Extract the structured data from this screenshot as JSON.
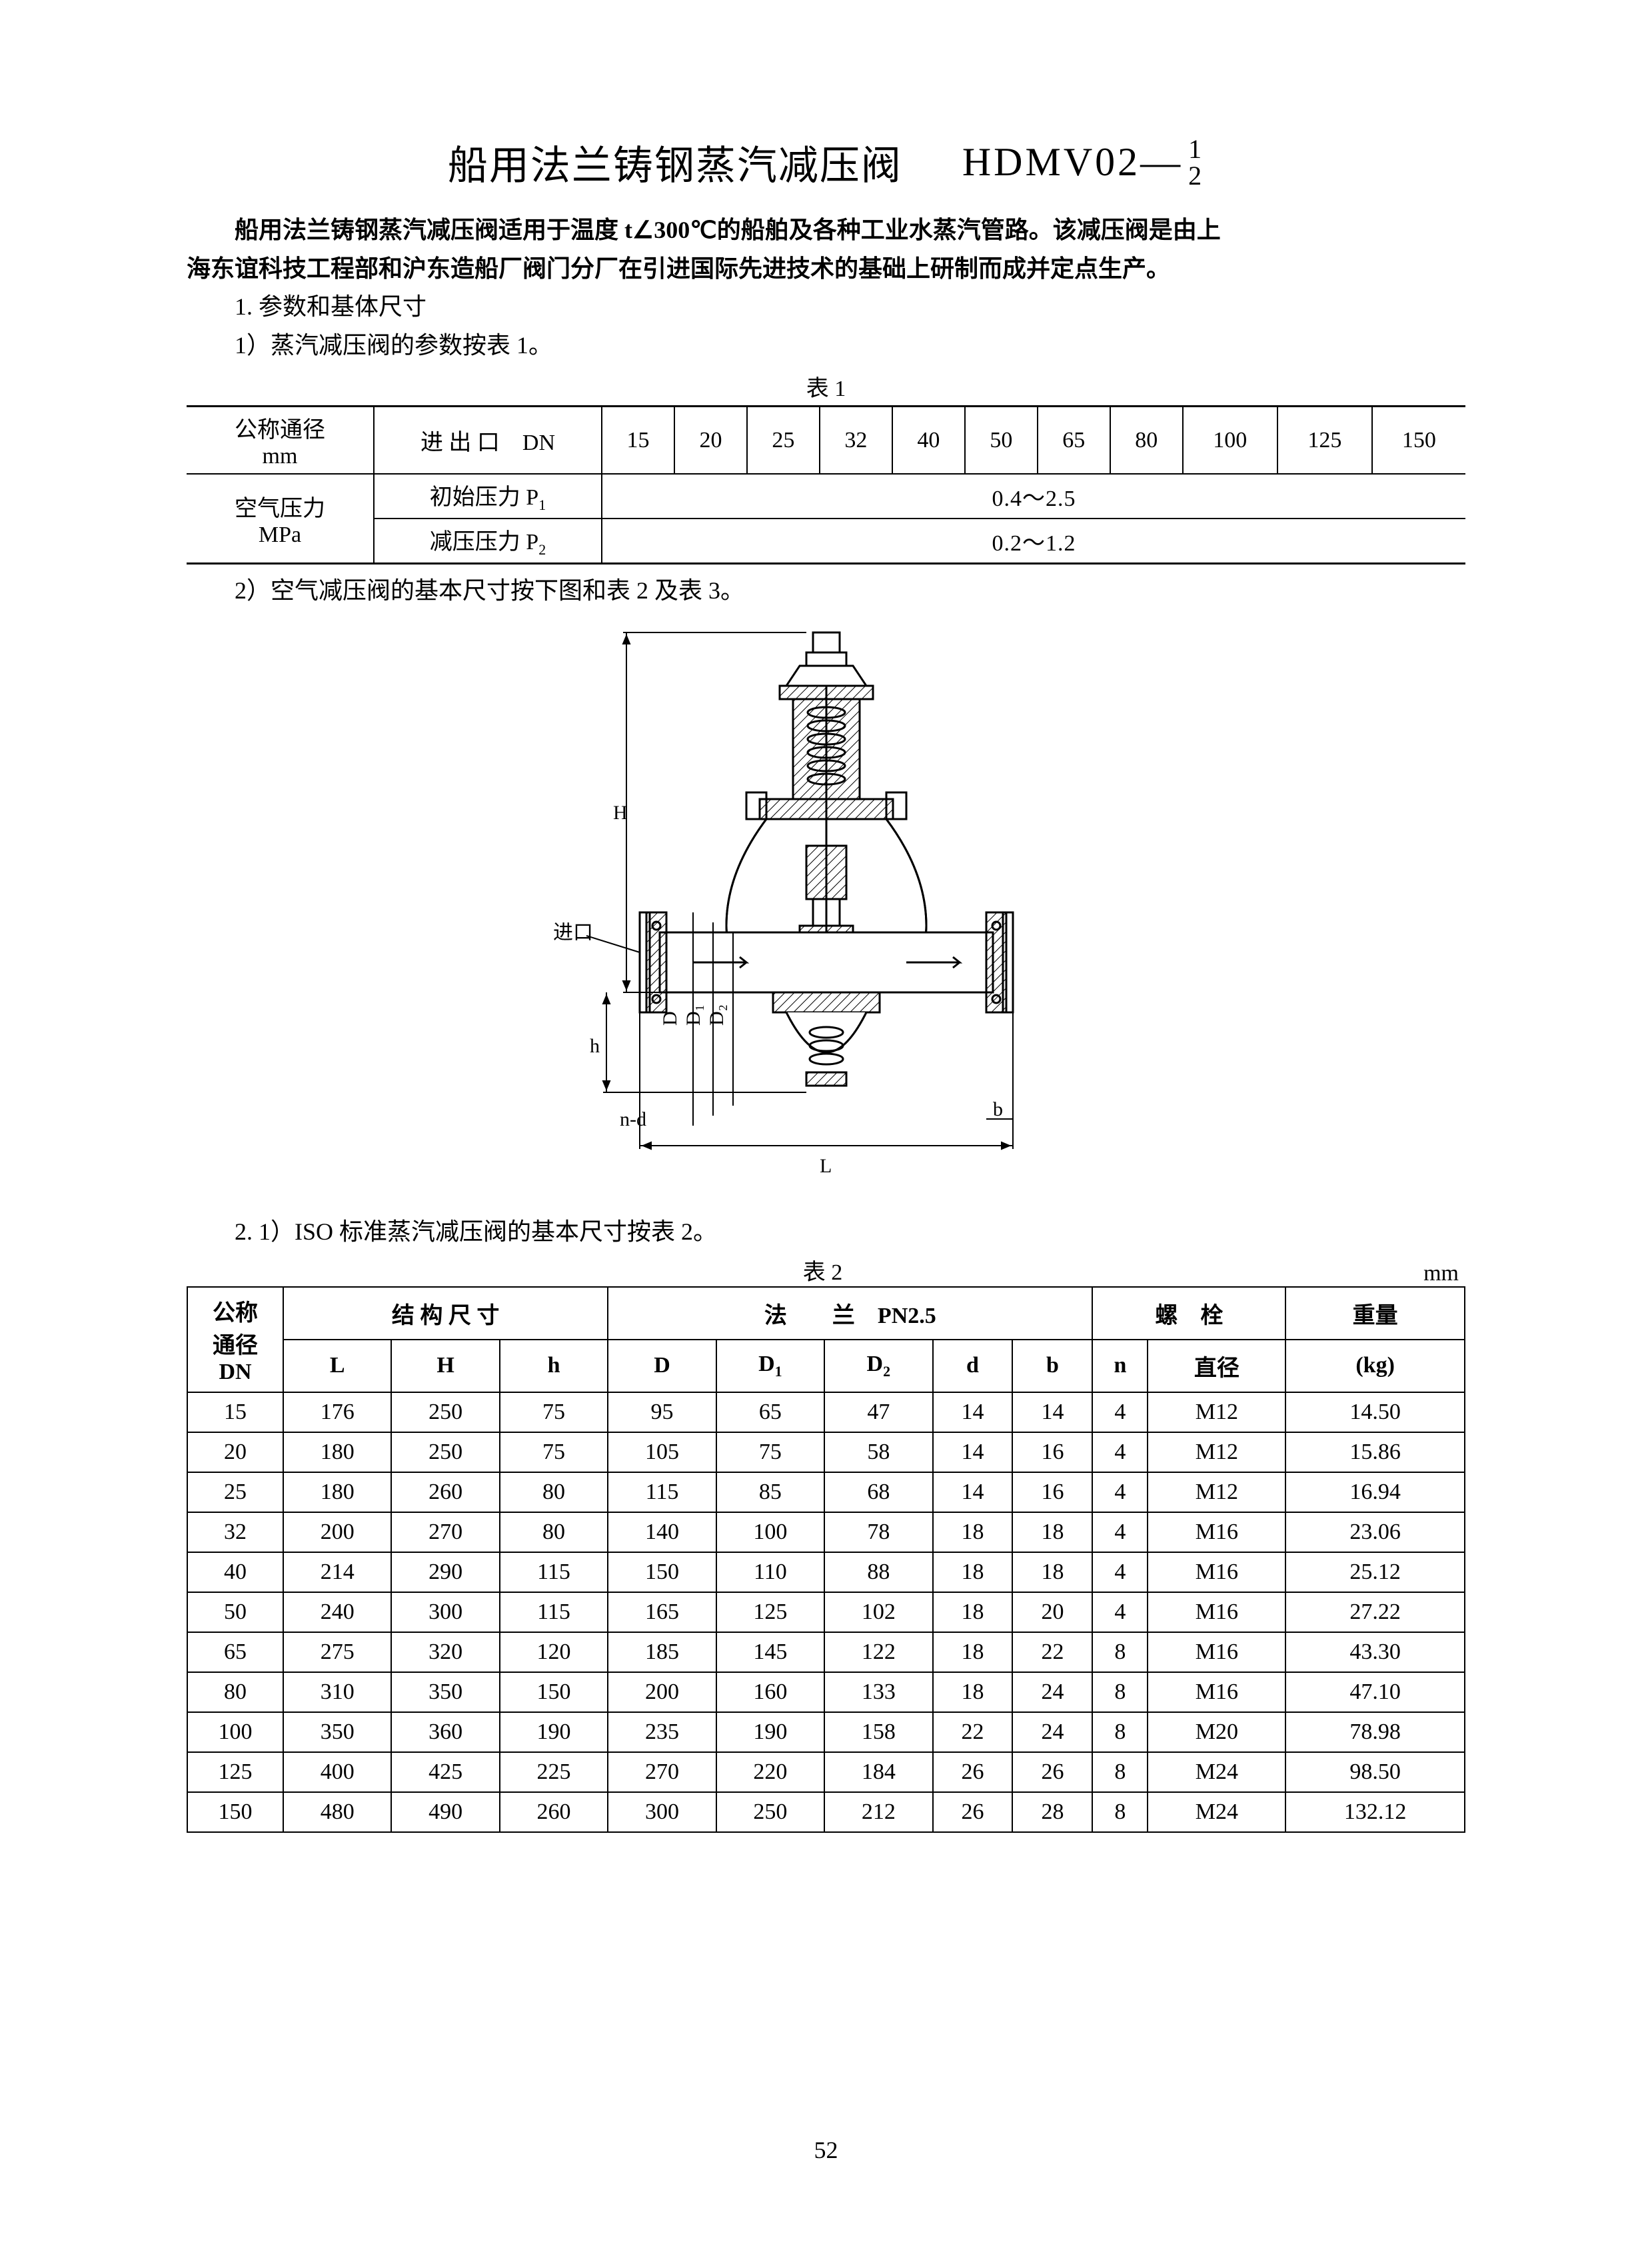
{
  "title": {
    "cn": "船用法兰铸钢蒸汽减压阀",
    "code_prefix": "HDMV02—",
    "frac_top": "1",
    "frac_bot": "2"
  },
  "intro_line1": "船用法兰铸钢蒸汽减压阀适用于温度 t∠300℃的船舶及各种工业水蒸汽管路。该减压阀是由上",
  "intro_line2": "海东谊科技工程部和沪东造船厂阀门分厂在引进国际先进技术的基础上研制而成并定点生产。",
  "sec1": "1. 参数和基体尺寸",
  "sec1_1": "1）蒸汽减压阀的参数按表 1。",
  "table1": {
    "caption": "表 1",
    "head": {
      "c1a": "公称通径",
      "c1b": "mm",
      "c2": "进 出 口　DN",
      "dn_values": [
        "15",
        "20",
        "25",
        "32",
        "40",
        "50",
        "65",
        "80",
        "100",
        "125",
        "150"
      ]
    },
    "row_group_label_a": "空气压力",
    "row_group_label_b": "MPa",
    "row1_label": "初始压力  P",
    "row1_sub": "1",
    "row1_value": "0.4～2.5",
    "row2_label": "减压压力  P",
    "row2_sub": "2",
    "row2_value": "0.2～1.2"
  },
  "note2": "2）空气减压阀的基本尺寸按下图和表 2 及表 3。",
  "diagram": {
    "inlet_label": "进口",
    "dim_H": "H",
    "dim_h": "h",
    "dim_L": "L",
    "dim_b": "b",
    "dim_D": "D",
    "dim_D1": "D₁",
    "dim_D2": "D₂",
    "dim_nd": "n-d",
    "stroke": "#000000",
    "hatch": "#000000",
    "bg": "#ffffff"
  },
  "sec2_1": "2. 1）ISO 标准蒸汽减压阀的基本尺寸按表 2。",
  "table2": {
    "caption": "表  2",
    "unit": "mm",
    "head": {
      "c1a": "公称",
      "c1b": "通径",
      "c1c": "DN",
      "g1": "结 构 尺 寸",
      "g2": "法　　兰　PN2.5",
      "g3": "螺　栓",
      "g4": "重量",
      "L": "L",
      "H": "H",
      "h": "h",
      "D": "D",
      "D1": "D",
      "D1s": "1",
      "D2": "D",
      "D2s": "2",
      "d": "d",
      "b": "b",
      "n": "n",
      "dia": "直径",
      "kg": "(kg)"
    },
    "rows": [
      [
        "15",
        "176",
        "250",
        "75",
        "95",
        "65",
        "47",
        "14",
        "14",
        "4",
        "M12",
        "14.50"
      ],
      [
        "20",
        "180",
        "250",
        "75",
        "105",
        "75",
        "58",
        "14",
        "16",
        "4",
        "M12",
        "15.86"
      ],
      [
        "25",
        "180",
        "260",
        "80",
        "115",
        "85",
        "68",
        "14",
        "16",
        "4",
        "M12",
        "16.94"
      ],
      [
        "32",
        "200",
        "270",
        "80",
        "140",
        "100",
        "78",
        "18",
        "18",
        "4",
        "M16",
        "23.06"
      ],
      [
        "40",
        "214",
        "290",
        "115",
        "150",
        "110",
        "88",
        "18",
        "18",
        "4",
        "M16",
        "25.12"
      ],
      [
        "50",
        "240",
        "300",
        "115",
        "165",
        "125",
        "102",
        "18",
        "20",
        "4",
        "M16",
        "27.22"
      ],
      [
        "65",
        "275",
        "320",
        "120",
        "185",
        "145",
        "122",
        "18",
        "22",
        "8",
        "M16",
        "43.30"
      ],
      [
        "80",
        "310",
        "350",
        "150",
        "200",
        "160",
        "133",
        "18",
        "24",
        "8",
        "M16",
        "47.10"
      ],
      [
        "100",
        "350",
        "360",
        "190",
        "235",
        "190",
        "158",
        "22",
        "24",
        "8",
        "M20",
        "78.98"
      ],
      [
        "125",
        "400",
        "425",
        "225",
        "270",
        "220",
        "184",
        "26",
        "26",
        "8",
        "M24",
        "98.50"
      ],
      [
        "150",
        "480",
        "490",
        "260",
        "300",
        "250",
        "212",
        "26",
        "28",
        "8",
        "M24",
        "132.12"
      ]
    ]
  },
  "page_number": "52",
  "colors": {
    "text": "#000000",
    "bg": "#ffffff",
    "rule": "#000000"
  }
}
